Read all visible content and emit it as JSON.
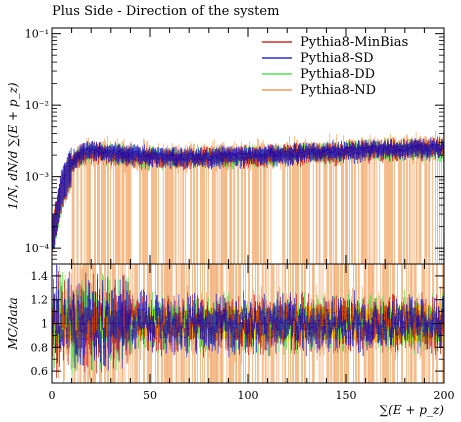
{
  "title": "Plus Side - Direction of the system",
  "chart_data": [
    {
      "type": "line",
      "panel": "main",
      "ylabel": "1/N, dN/d ∑(E + p_z)",
      "yscale": "log",
      "ylim": [
        6e-05,
        0.12
      ],
      "yticks": [
        {
          "value": 0.1,
          "label": "10⁻¹"
        },
        {
          "value": 0.01,
          "label": "10⁻²"
        },
        {
          "value": 0.001,
          "label": "10⁻³"
        },
        {
          "value": 0.0001,
          "label": "10⁻⁴"
        }
      ],
      "xlim": [
        0,
        200
      ],
      "legend": "top-right",
      "series": [
        {
          "name": "Pythia8-MinBias",
          "color": "#cc0000",
          "x": [
            1,
            3,
            5,
            8,
            12,
            16,
            20,
            25,
            30,
            40,
            50,
            60,
            70,
            80,
            90,
            100,
            110,
            120,
            130,
            140,
            150,
            160,
            170,
            180,
            190,
            199
          ],
          "y": [
            0.0002,
            0.0004,
            0.0007,
            0.0012,
            0.0018,
            0.0022,
            0.0023,
            0.0022,
            0.0021,
            0.002,
            0.0019,
            0.0019,
            0.0019,
            0.0019,
            0.0019,
            0.002,
            0.002,
            0.0021,
            0.0022,
            0.0022,
            0.0023,
            0.0024,
            0.0024,
            0.0025,
            0.0025,
            0.0025
          ]
        },
        {
          "name": "Pythia8-SD",
          "color": "#0000cc",
          "x": [
            1,
            3,
            5,
            8,
            12,
            16,
            20,
            25,
            30,
            40,
            50,
            60,
            70,
            80,
            90,
            100,
            110,
            120,
            130,
            140,
            150,
            160,
            170,
            180,
            190,
            199
          ],
          "y": [
            0.0002,
            0.00045,
            0.0008,
            0.0013,
            0.0019,
            0.0023,
            0.0024,
            0.0023,
            0.0022,
            0.0021,
            0.002,
            0.0019,
            0.0019,
            0.0019,
            0.002,
            0.002,
            0.0021,
            0.0021,
            0.0022,
            0.0023,
            0.0023,
            0.0024,
            0.0025,
            0.0025,
            0.0025,
            0.0026
          ]
        },
        {
          "name": "Pythia8-DD",
          "color": "#33dd33",
          "x": [
            1,
            3,
            5,
            8,
            12,
            16,
            20,
            25,
            30,
            40,
            50,
            60,
            70,
            80,
            90,
            100,
            110,
            120,
            130,
            140,
            150,
            160,
            170,
            180,
            190,
            199
          ],
          "y": [
            0.00018,
            0.0004,
            0.0007,
            0.0012,
            0.0018,
            0.0021,
            0.0022,
            0.0022,
            0.0021,
            0.002,
            0.0019,
            0.0019,
            0.0019,
            0.0019,
            0.0019,
            0.002,
            0.002,
            0.0021,
            0.0022,
            0.0022,
            0.0023,
            0.0024,
            0.0024,
            0.0025,
            0.0025,
            0.0025
          ]
        },
        {
          "name": "Pythia8-ND",
          "color": "#ee8833",
          "x": [
            1,
            3,
            5,
            8,
            12,
            16,
            20,
            25,
            30,
            40,
            50,
            60,
            70,
            80,
            90,
            100,
            110,
            120,
            130,
            140,
            150,
            160,
            170,
            180,
            190,
            199
          ],
          "y": [
            0.0002,
            0.0004,
            0.0007,
            0.0011,
            0.0017,
            0.002,
            0.0021,
            0.0021,
            0.002,
            0.0019,
            0.0019,
            0.0018,
            0.0018,
            0.0019,
            0.0019,
            0.002,
            0.002,
            0.0021,
            0.0021,
            0.0022,
            0.0023,
            0.0023,
            0.0024,
            0.0024,
            0.0025,
            0.0025
          ]
        }
      ]
    },
    {
      "type": "line",
      "panel": "ratio",
      "ylabel": "MC/data",
      "xlabel": "∑(E + p_z)",
      "xlim": [
        0,
        200
      ],
      "xticks": [
        0,
        50,
        100,
        150,
        200
      ],
      "ylim": [
        0.5,
        1.5
      ],
      "yticks": [
        0.6,
        0.8,
        1,
        1.2,
        1.4
      ],
      "reference": 1.0,
      "band_color": "#ffff00",
      "band_halfwidth": {
        "x": [
          0,
          10,
          40,
          80,
          120,
          160,
          200
        ],
        "y": [
          0.12,
          0.12,
          0.1,
          0.12,
          0.13,
          0.14,
          0.15
        ]
      }
    }
  ]
}
